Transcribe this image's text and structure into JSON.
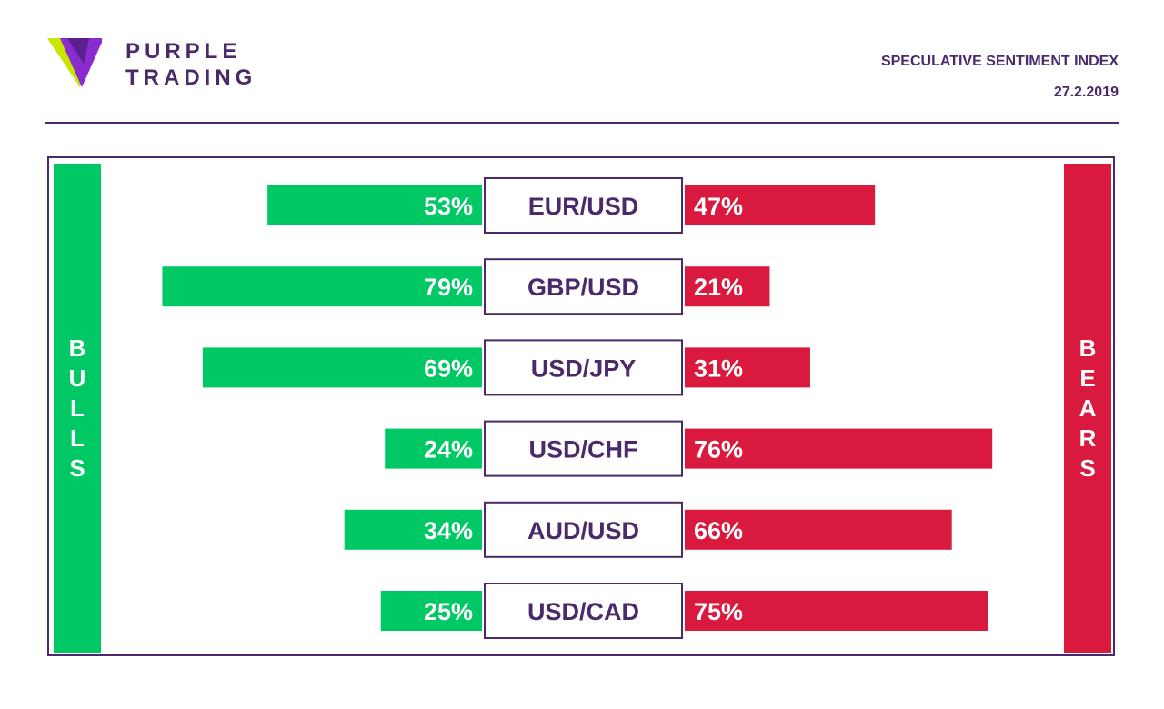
{
  "brand": {
    "line1": "PURPLE",
    "line2": "TRADING",
    "logo_icon": "purple-trading-logo-icon",
    "colors": {
      "purple": "#4a2a6a",
      "lime": "#c8e600",
      "violet": "#8a2bd0"
    }
  },
  "header": {
    "title": "SPECULATIVE SENTIMENT INDEX",
    "date": "27.2.2019"
  },
  "sides": {
    "bulls_label": "BULLS",
    "bears_label": "BEARS",
    "bulls_color": "#00c864",
    "bears_color": "#d9193d"
  },
  "chart_data": {
    "type": "bar",
    "orientation": "horizontal-diverging",
    "categories": [
      "EUR/USD",
      "GBP/USD",
      "USD/JPY",
      "USD/CHF",
      "AUD/USD",
      "USD/CAD"
    ],
    "series": [
      {
        "name": "BULLS",
        "values": [
          53,
          79,
          69,
          24,
          34,
          25
        ],
        "labels": [
          "53%",
          "79%",
          "69%",
          "24%",
          "34%",
          "25%"
        ]
      },
      {
        "name": "BEARS",
        "values": [
          47,
          21,
          31,
          76,
          66,
          75
        ],
        "labels": [
          "47%",
          "21%",
          "31%",
          "76%",
          "66%",
          "75%"
        ]
      }
    ],
    "unit": "%",
    "xlim": [
      0,
      100
    ]
  }
}
